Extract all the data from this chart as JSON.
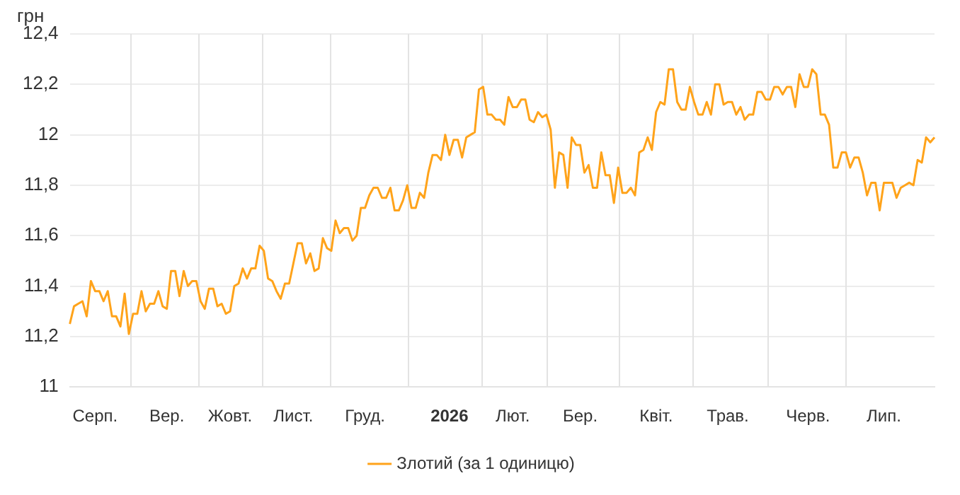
{
  "chart_data": {
    "type": "line",
    "ylabel": "грн",
    "legend": "bottom",
    "grid": true,
    "marker": "none",
    "line_style": "solid",
    "ylim": [
      11,
      12.4
    ],
    "yticks": [
      11,
      {
        "value": 11.2,
        "label": "11,2"
      },
      {
        "value": 11.4,
        "label": "11,4"
      },
      {
        "value": 11.6,
        "label": "11,6"
      },
      {
        "value": 11.8,
        "label": "11,8"
      },
      12,
      {
        "value": 12.2,
        "label": "12,2"
      },
      {
        "value": 12.4,
        "label": "12,4"
      }
    ],
    "categories": [
      null,
      null,
      null,
      null,
      null,
      null,
      "Серп.",
      null,
      null,
      null,
      null,
      null,
      null,
      null,
      null,
      null,
      null,
      null,
      null,
      null,
      null,
      null,
      null,
      "Вер.",
      null,
      null,
      null,
      null,
      null,
      null,
      null,
      null,
      null,
      null,
      null,
      null,
      null,
      null,
      "Жовт.",
      null,
      null,
      null,
      null,
      null,
      null,
      null,
      null,
      null,
      null,
      null,
      null,
      null,
      null,
      "Лист.",
      null,
      null,
      null,
      null,
      null,
      null,
      null,
      null,
      null,
      null,
      null,
      null,
      null,
      null,
      null,
      null,
      "Груд.",
      null,
      null,
      null,
      null,
      null,
      null,
      null,
      null,
      null,
      null,
      null,
      null,
      null,
      null,
      null,
      null,
      null,
      null,
      null,
      "2026",
      null,
      null,
      null,
      null,
      null,
      null,
      null,
      null,
      null,
      null,
      null,
      null,
      null,
      null,
      "Лют.",
      null,
      null,
      null,
      null,
      null,
      null,
      null,
      null,
      null,
      null,
      null,
      null,
      null,
      null,
      null,
      "Бер.",
      null,
      null,
      null,
      null,
      null,
      null,
      null,
      null,
      null,
      null,
      null,
      null,
      null,
      null,
      null,
      null,
      null,
      "Квіт.",
      null,
      null,
      null,
      null,
      null,
      null,
      null,
      null,
      null,
      null,
      null,
      null,
      null,
      null,
      null,
      null,
      "Трав.",
      null,
      null,
      null,
      null,
      null,
      null,
      null,
      null,
      null,
      null,
      null,
      null,
      null,
      null,
      null,
      null,
      null,
      null,
      "Черв.",
      null,
      null,
      null,
      null,
      null,
      null,
      null,
      null,
      null,
      null,
      null,
      null,
      null,
      null,
      null,
      null,
      null,
      "Лип.",
      null,
      null,
      null,
      null,
      null,
      null,
      null,
      null,
      null,
      null,
      null,
      null
    ],
    "series": [
      {
        "name": "Злотий (за 1 одиницю)",
        "color": "#ffa31a",
        "values": [
          11.25,
          11.32,
          11.33,
          11.34,
          11.28,
          11.42,
          11.38,
          11.38,
          11.34,
          11.38,
          11.28,
          11.28,
          11.24,
          11.37,
          11.21,
          11.29,
          11.29,
          11.38,
          11.3,
          11.33,
          11.33,
          11.38,
          11.32,
          11.31,
          11.46,
          11.46,
          11.36,
          11.46,
          11.4,
          11.42,
          11.42,
          11.34,
          11.31,
          11.39,
          11.39,
          11.32,
          11.33,
          11.29,
          11.3,
          11.4,
          11.41,
          11.47,
          11.43,
          11.47,
          11.47,
          11.56,
          11.54,
          11.43,
          11.42,
          11.38,
          11.35,
          11.41,
          11.41,
          11.49,
          11.57,
          11.57,
          11.49,
          11.53,
          11.46,
          11.47,
          11.59,
          11.55,
          11.54,
          11.66,
          11.61,
          11.63,
          11.63,
          11.58,
          11.6,
          11.71,
          11.71,
          11.76,
          11.79,
          11.79,
          11.75,
          11.75,
          11.79,
          11.7,
          11.7,
          11.74,
          11.8,
          11.71,
          11.71,
          11.77,
          11.75,
          11.85,
          11.92,
          11.92,
          11.9,
          12,
          11.92,
          11.98,
          11.98,
          11.91,
          11.99,
          12,
          12.01,
          12.18,
          12.19,
          12.08,
          12.08,
          12.06,
          12.06,
          12.04,
          12.15,
          12.11,
          12.11,
          12.14,
          12.14,
          12.06,
          12.05,
          12.09,
          12.07,
          12.08,
          12.02,
          11.79,
          11.93,
          11.92,
          11.79,
          11.99,
          11.96,
          11.96,
          11.85,
          11.88,
          11.79,
          11.79,
          11.93,
          11.84,
          11.84,
          11.73,
          11.87,
          11.77,
          11.77,
          11.79,
          11.76,
          11.93,
          11.94,
          11.99,
          11.94,
          12.09,
          12.13,
          12.12,
          12.26,
          12.26,
          12.13,
          12.1,
          12.1,
          12.19,
          12.13,
          12.08,
          12.08,
          12.13,
          12.08,
          12.2,
          12.2,
          12.12,
          12.13,
          12.13,
          12.08,
          12.11,
          12.06,
          12.08,
          12.08,
          12.17,
          12.17,
          12.14,
          12.14,
          12.19,
          12.19,
          12.16,
          12.19,
          12.19,
          12.11,
          12.24,
          12.19,
          12.19,
          12.26,
          12.24,
          12.08,
          12.08,
          12.04,
          11.87,
          11.87,
          11.93,
          11.93,
          11.87,
          11.91,
          11.91,
          11.85,
          11.76,
          11.81,
          11.81,
          11.7,
          11.81,
          11.81,
          11.81,
          11.75,
          11.79,
          11.8,
          11.81,
          11.8,
          11.9,
          11.89,
          11.99,
          11.97,
          11.99
        ]
      }
    ]
  }
}
